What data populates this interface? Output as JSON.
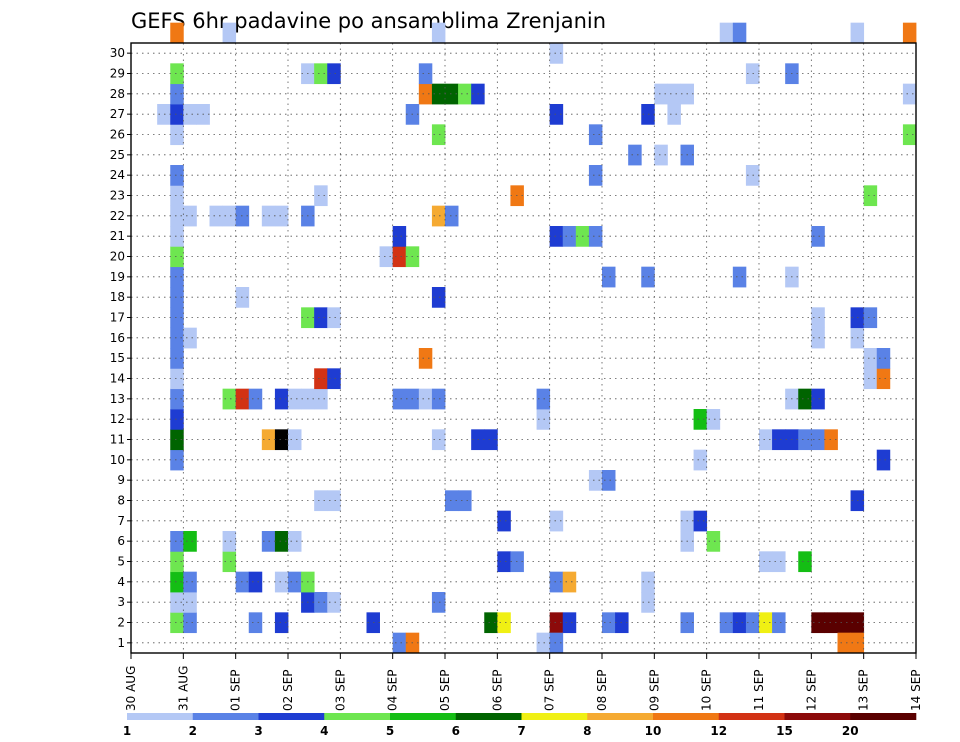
{
  "chart_data": {
    "type": "heatmap",
    "title": "GEFS 6hr padavine po ansamblima Zrenjanin",
    "xlabel": "",
    "ylabel": "",
    "x_tick_labels": [
      "30 AUG",
      "31 AUG",
      "01 SEP",
      "02 SEP",
      "03 SEP",
      "04 SEP",
      "05 SEP",
      "06 SEP",
      "07 SEP",
      "08 SEP",
      "09 SEP",
      "10 SEP",
      "11 SEP",
      "12 SEP",
      "13 SEP",
      "14 SEP"
    ],
    "y_tick_labels": [
      "1",
      "2",
      "3",
      "4",
      "5",
      "6",
      "7",
      "8",
      "9",
      "10",
      "11",
      "12",
      "13",
      "14",
      "15",
      "16",
      "17",
      "18",
      "19",
      "20",
      "21",
      "22",
      "23",
      "24",
      "25",
      "26",
      "27",
      "28",
      "29",
      "30"
    ],
    "xlim": [
      0,
      60
    ],
    "ylim": [
      0,
      30
    ],
    "grid": true,
    "colorbar": {
      "labels": [
        "1",
        "2",
        "3",
        "4",
        "5",
        "6",
        "7",
        "8",
        "10",
        "12",
        "15",
        "20"
      ],
      "colors": [
        "#b4c8f5",
        "#5a82e6",
        "#1e3cd2",
        "#6ee650",
        "#14be14",
        "#006400",
        "#f0f014",
        "#f5aa32",
        "#f07814",
        "#d23214",
        "#8c0a0a",
        "#5a0000"
      ]
    },
    "cells": [
      [
        3,
        1,
        4
      ],
      [
        4,
        1,
        2
      ],
      [
        9,
        1,
        2
      ],
      [
        11,
        1,
        3
      ],
      [
        18,
        1,
        3
      ],
      [
        27,
        1,
        6
      ],
      [
        28,
        1,
        7
      ],
      [
        32,
        1,
        11
      ],
      [
        33,
        1,
        3
      ],
      [
        36,
        1,
        2
      ],
      [
        37,
        1,
        3
      ],
      [
        42,
        1,
        2
      ],
      [
        45,
        1,
        2
      ],
      [
        46,
        1,
        3
      ],
      [
        47,
        1,
        2
      ],
      [
        48,
        1,
        7
      ],
      [
        49,
        1,
        2
      ],
      [
        52,
        1,
        12
      ],
      [
        53,
        1,
        12
      ],
      [
        54,
        1,
        12
      ],
      [
        55,
        1,
        12
      ],
      [
        3,
        2,
        1
      ],
      [
        4,
        2,
        1
      ],
      [
        13,
        2,
        3
      ],
      [
        14,
        2,
        2
      ],
      [
        15,
        2,
        1
      ],
      [
        23,
        2,
        2
      ],
      [
        39,
        2,
        1
      ],
      [
        3,
        3,
        5
      ],
      [
        4,
        3,
        2
      ],
      [
        8,
        3,
        2
      ],
      [
        9,
        3,
        3
      ],
      [
        11,
        3,
        1
      ],
      [
        12,
        3,
        2
      ],
      [
        13,
        3,
        4
      ],
      [
        32,
        3,
        2
      ],
      [
        33,
        3,
        8
      ],
      [
        39,
        3,
        1
      ],
      [
        3,
        4,
        4
      ],
      [
        7,
        4,
        4
      ],
      [
        28,
        4,
        3
      ],
      [
        29,
        4,
        2
      ],
      [
        48,
        4,
        1
      ],
      [
        49,
        4,
        1
      ],
      [
        51,
        4,
        5
      ],
      [
        3,
        5,
        2
      ],
      [
        4,
        5,
        5
      ],
      [
        7,
        5,
        1
      ],
      [
        10,
        5,
        2
      ],
      [
        11,
        5,
        6
      ],
      [
        12,
        5,
        1
      ],
      [
        42,
        5,
        1
      ],
      [
        44,
        5,
        4
      ],
      [
        28,
        6,
        3
      ],
      [
        32,
        6,
        1
      ],
      [
        42,
        6,
        1
      ],
      [
        43,
        6,
        3
      ],
      [
        14,
        7,
        1
      ],
      [
        15,
        7,
        1
      ],
      [
        24,
        7,
        2
      ],
      [
        25,
        7,
        2
      ],
      [
        55,
        7,
        3
      ],
      [
        35,
        8,
        1
      ],
      [
        36,
        8,
        2
      ],
      [
        3,
        9,
        2
      ],
      [
        43,
        9,
        1
      ],
      [
        57,
        9,
        3
      ],
      [
        3,
        10,
        6
      ],
      [
        10,
        10,
        8
      ],
      [
        11,
        10,
        13
      ],
      [
        12,
        10,
        1
      ],
      [
        23,
        10,
        1
      ],
      [
        26,
        10,
        3
      ],
      [
        27,
        10,
        3
      ],
      [
        48,
        10,
        1
      ],
      [
        49,
        10,
        3
      ],
      [
        50,
        10,
        3
      ],
      [
        51,
        10,
        2
      ],
      [
        52,
        10,
        2
      ],
      [
        53,
        10,
        9
      ],
      [
        3,
        11,
        3
      ],
      [
        31,
        11,
        1
      ],
      [
        43,
        11,
        5
      ],
      [
        44,
        11,
        1
      ],
      [
        3,
        12,
        2
      ],
      [
        7,
        12,
        4
      ],
      [
        8,
        12,
        10
      ],
      [
        9,
        12,
        2
      ],
      [
        11,
        12,
        3
      ],
      [
        12,
        12,
        1
      ],
      [
        13,
        12,
        1
      ],
      [
        14,
        12,
        1
      ],
      [
        20,
        12,
        2
      ],
      [
        21,
        12,
        2
      ],
      [
        22,
        12,
        1
      ],
      [
        23,
        12,
        2
      ],
      [
        31,
        12,
        2
      ],
      [
        50,
        12,
        1
      ],
      [
        51,
        12,
        6
      ],
      [
        52,
        12,
        3
      ],
      [
        3,
        13,
        1
      ],
      [
        14,
        13,
        10
      ],
      [
        15,
        13,
        3
      ],
      [
        56,
        13,
        1
      ],
      [
        57,
        13,
        9
      ],
      [
        3,
        14,
        2
      ],
      [
        22,
        14,
        9
      ],
      [
        56,
        14,
        1
      ],
      [
        57,
        14,
        2
      ],
      [
        3,
        15,
        2
      ],
      [
        4,
        15,
        1
      ],
      [
        52,
        15,
        1
      ],
      [
        55,
        15,
        1
      ],
      [
        3,
        16,
        2
      ],
      [
        13,
        16,
        4
      ],
      [
        14,
        16,
        3
      ],
      [
        15,
        16,
        1
      ],
      [
        52,
        16,
        1
      ],
      [
        55,
        16,
        3
      ],
      [
        56,
        16,
        2
      ],
      [
        3,
        17,
        2
      ],
      [
        8,
        17,
        1
      ],
      [
        23,
        17,
        3
      ],
      [
        3,
        18,
        2
      ],
      [
        36,
        18,
        2
      ],
      [
        39,
        18,
        2
      ],
      [
        46,
        18,
        2
      ],
      [
        50,
        18,
        1
      ],
      [
        3,
        19,
        4
      ],
      [
        19,
        19,
        1
      ],
      [
        20,
        19,
        10
      ],
      [
        21,
        19,
        4
      ],
      [
        3,
        20,
        1
      ],
      [
        20,
        20,
        3
      ],
      [
        32,
        20,
        3
      ],
      [
        33,
        20,
        2
      ],
      [
        34,
        20,
        4
      ],
      [
        35,
        20,
        2
      ],
      [
        52,
        20,
        2
      ],
      [
        3,
        21,
        1
      ],
      [
        4,
        21,
        1
      ],
      [
        6,
        21,
        1
      ],
      [
        7,
        21,
        1
      ],
      [
        8,
        21,
        2
      ],
      [
        10,
        21,
        1
      ],
      [
        11,
        21,
        1
      ],
      [
        13,
        21,
        2
      ],
      [
        23,
        21,
        8
      ],
      [
        24,
        21,
        2
      ],
      [
        3,
        22,
        1
      ],
      [
        14,
        22,
        1
      ],
      [
        29,
        22,
        9
      ],
      [
        56,
        22,
        4
      ],
      [
        3,
        23,
        2
      ],
      [
        35,
        23,
        2
      ],
      [
        47,
        23,
        1
      ],
      [
        38,
        24,
        2
      ],
      [
        40,
        24,
        1
      ],
      [
        42,
        24,
        2
      ],
      [
        3,
        25,
        1
      ],
      [
        23,
        25,
        4
      ],
      [
        35,
        25,
        2
      ],
      [
        59,
        25,
        4
      ],
      [
        2,
        26,
        1
      ],
      [
        3,
        26,
        3
      ],
      [
        4,
        26,
        1
      ],
      [
        5,
        26,
        1
      ],
      [
        21,
        26,
        2
      ],
      [
        32,
        26,
        3
      ],
      [
        39,
        26,
        3
      ],
      [
        41,
        26,
        1
      ],
      [
        3,
        27,
        2
      ],
      [
        22,
        27,
        9
      ],
      [
        23,
        27,
        6
      ],
      [
        24,
        27,
        6
      ],
      [
        25,
        27,
        4
      ],
      [
        26,
        27,
        3
      ],
      [
        40,
        27,
        1
      ],
      [
        41,
        27,
        1
      ],
      [
        42,
        27,
        1
      ],
      [
        59,
        27,
        1
      ],
      [
        3,
        28,
        4
      ],
      [
        13,
        28,
        1
      ],
      [
        14,
        28,
        4
      ],
      [
        15,
        28,
        3
      ],
      [
        22,
        28,
        2
      ],
      [
        47,
        28,
        1
      ],
      [
        50,
        28,
        2
      ],
      [
        32,
        29,
        1
      ],
      [
        3,
        30,
        9
      ],
      [
        7,
        30,
        1
      ],
      [
        23,
        30,
        1
      ],
      [
        45,
        30,
        1
      ],
      [
        46,
        30,
        2
      ],
      [
        55,
        30,
        1
      ],
      [
        59,
        30,
        9
      ],
      [
        20,
        0,
        2
      ],
      [
        21,
        0,
        9
      ],
      [
        31,
        0,
        1
      ],
      [
        32,
        0,
        2
      ],
      [
        54,
        0,
        9
      ],
      [
        55,
        0,
        9
      ]
    ]
  }
}
